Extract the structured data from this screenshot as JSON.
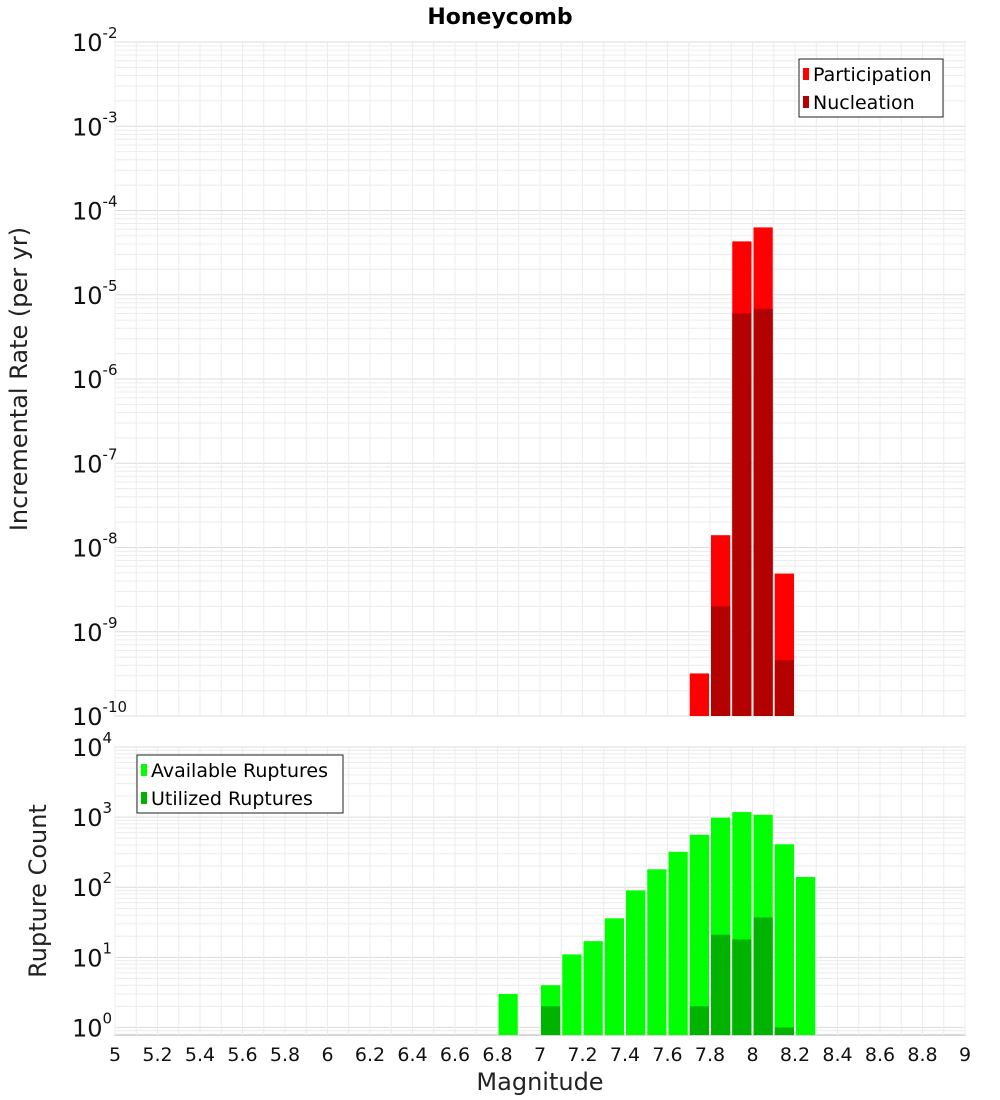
{
  "chart_data": [
    {
      "type": "bar",
      "title": "Honeycomb",
      "ylabel": "Incremental Rate (per yr)",
      "xlabel": "",
      "x_range": [
        5,
        9
      ],
      "ylim": [
        1e-10,
        0.01
      ],
      "y_scale": "log",
      "y_ticks": [
        {
          "base": "10",
          "exp": "-10"
        },
        {
          "base": "10",
          "exp": "-9"
        },
        {
          "base": "10",
          "exp": "-8"
        },
        {
          "base": "10",
          "exp": "-7"
        },
        {
          "base": "10",
          "exp": "-6"
        },
        {
          "base": "10",
          "exp": "-5"
        },
        {
          "base": "10",
          "exp": "-4"
        },
        {
          "base": "10",
          "exp": "-3"
        },
        {
          "base": "10",
          "exp": "-2"
        }
      ],
      "grid": true,
      "legend_position": "top-right",
      "bar_width": 0.1,
      "x": [
        7.75,
        7.85,
        7.95,
        8.05,
        8.15
      ],
      "series": [
        {
          "name": "Participation",
          "color": "#ff0000",
          "values": [
            3.2e-10,
            1.4e-08,
            4.3e-05,
            6.3e-05,
            4.9e-09
          ]
        },
        {
          "name": "Nucleation",
          "color": "#b30000",
          "values": [
            null,
            2e-09,
            6e-06,
            6.8e-06,
            4.6e-10
          ]
        }
      ]
    },
    {
      "type": "bar",
      "title": "",
      "ylabel": "Rupture Count",
      "xlabel": "Magnitude",
      "x_range": [
        5,
        9
      ],
      "ylim": [
        0.78,
        10000
      ],
      "y_scale": "log",
      "y_ticks": [
        {
          "base": "10",
          "exp": "0"
        },
        {
          "base": "10",
          "exp": "1"
        },
        {
          "base": "10",
          "exp": "2"
        },
        {
          "base": "10",
          "exp": "3"
        },
        {
          "base": "10",
          "exp": "4"
        }
      ],
      "x_ticks": [
        "5",
        "5.2",
        "5.4",
        "5.6",
        "5.8",
        "6",
        "6.2",
        "6.4",
        "6.6",
        "6.8",
        "7",
        "7.2",
        "7.4",
        "7.6",
        "7.8",
        "8",
        "8.2",
        "8.4",
        "8.6",
        "8.8",
        "9"
      ],
      "grid": true,
      "legend_position": "top-left",
      "bar_width": 0.1,
      "x": [
        6.85,
        7.05,
        7.15,
        7.25,
        7.35,
        7.45,
        7.55,
        7.65,
        7.75,
        7.85,
        7.95,
        8.05,
        8.15,
        8.25
      ],
      "series": [
        {
          "name": "Available Ruptures",
          "color": "#00ff00",
          "values": [
            3,
            4,
            11,
            17,
            36,
            90,
            180,
            320,
            560,
            980,
            1180,
            1080,
            410,
            140
          ]
        },
        {
          "name": "Utilized Ruptures",
          "color": "#00b300",
          "values": [
            null,
            2,
            null,
            null,
            null,
            null,
            null,
            null,
            2,
            21,
            18,
            37,
            1,
            null
          ]
        }
      ]
    }
  ]
}
